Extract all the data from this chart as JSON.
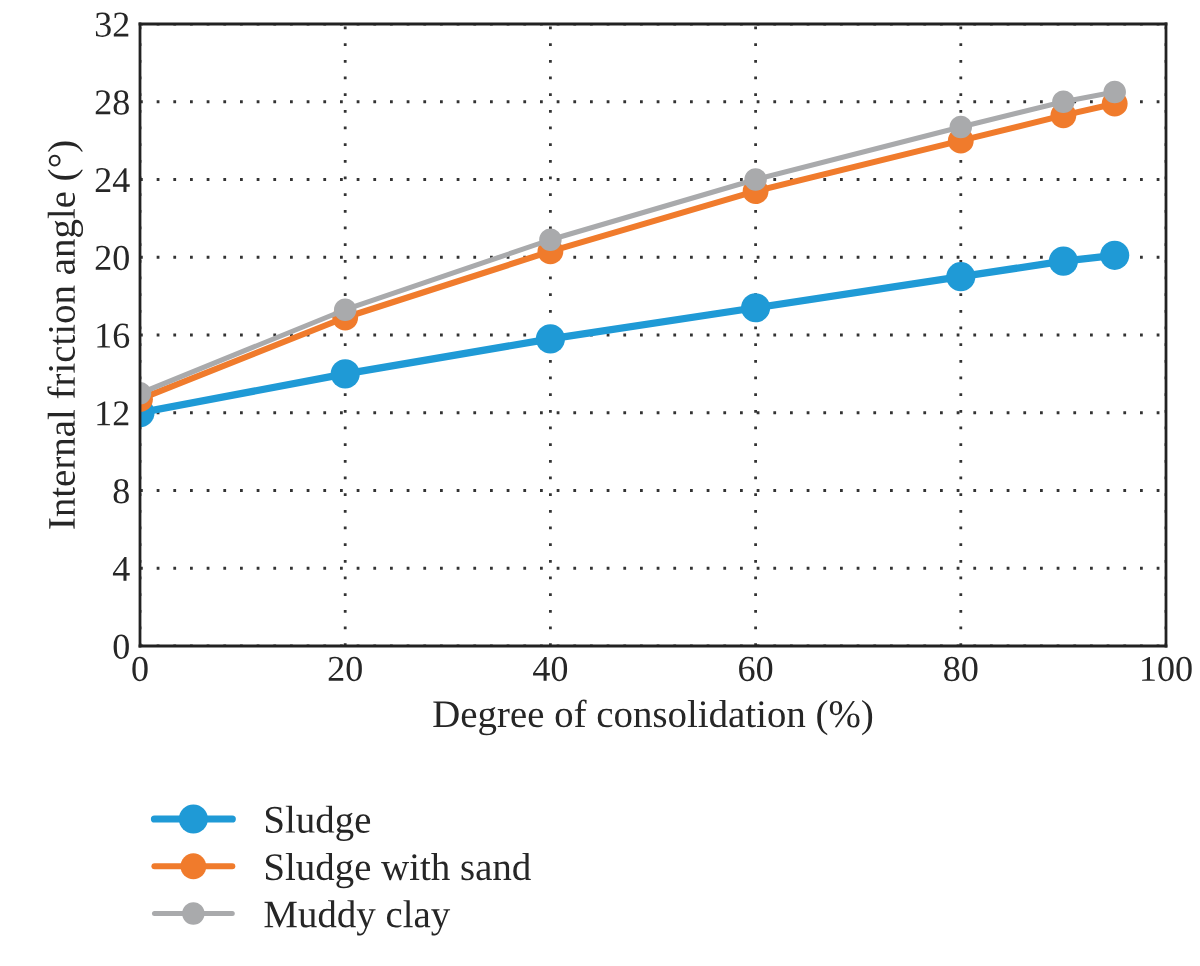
{
  "chart_data": {
    "type": "line",
    "xlabel": "Degree of consolidation (%)",
    "ylabel": "Internal friction angle (°)",
    "x": [
      0,
      20,
      40,
      60,
      80,
      90,
      95
    ],
    "series": [
      {
        "name": "Sludge",
        "color": "#1f9ad6",
        "values": [
          12.0,
          14.0,
          15.8,
          17.4,
          19.0,
          19.8,
          20.1
        ]
      },
      {
        "name": "Sludge with sand",
        "color": "#f07b2c",
        "values": [
          12.7,
          16.9,
          20.3,
          23.4,
          26.0,
          27.3,
          27.9
        ]
      },
      {
        "name": "Muddy clay",
        "color": "#a9aaac",
        "values": [
          13.0,
          17.3,
          20.9,
          24.0,
          26.7,
          28.0,
          28.5
        ]
      }
    ],
    "xlim": [
      0,
      100
    ],
    "xticks": [
      0,
      20,
      40,
      60,
      80,
      100
    ],
    "ylim": [
      0,
      32
    ],
    "yticks": [
      0,
      4,
      8,
      12,
      16,
      20,
      24,
      28,
      32
    ],
    "grid": true,
    "legend": "bottom",
    "marker": "circle",
    "line_style": "solid"
  }
}
